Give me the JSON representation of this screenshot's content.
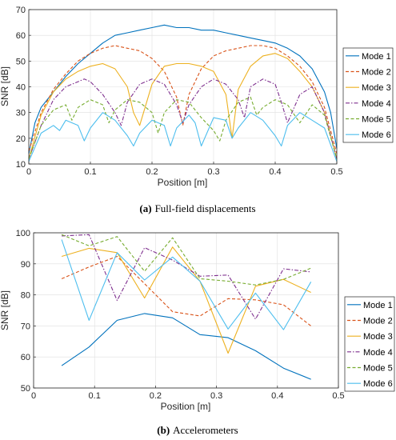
{
  "chart_data": [
    {
      "type": "line",
      "caption_label": "(a)",
      "caption_text": "Full-field displacements",
      "xlabel": "Position [m]",
      "ylabel": "SNR [dB]",
      "xlim": [
        0,
        0.5
      ],
      "ylim": [
        10,
        70
      ],
      "xticks": [
        "0",
        "0.1",
        "0.2",
        "0.3",
        "0.4",
        "0.5"
      ],
      "yticks": [
        "10",
        "20",
        "30",
        "40",
        "50",
        "60",
        "70"
      ],
      "grid": true,
      "legend_position": "right",
      "series": [
        {
          "name": "Mode 1",
          "color": "#0072BD",
          "dash": "solid",
          "x": [
            0,
            0.01,
            0.02,
            0.04,
            0.06,
            0.08,
            0.1,
            0.12,
            0.14,
            0.16,
            0.18,
            0.2,
            0.22,
            0.24,
            0.26,
            0.28,
            0.3,
            0.32,
            0.34,
            0.36,
            0.38,
            0.4,
            0.42,
            0.44,
            0.46,
            0.48,
            0.49,
            0.5
          ],
          "y": [
            14,
            26,
            32,
            38,
            44,
            49,
            53,
            57,
            60,
            61,
            62,
            63,
            64,
            63,
            63,
            62,
            62,
            61,
            60,
            59,
            58,
            57,
            55,
            52,
            47,
            38,
            30,
            16
          ]
        },
        {
          "name": "Mode 2",
          "color": "#D95319",
          "dash": "dashed",
          "x": [
            0,
            0.02,
            0.04,
            0.06,
            0.08,
            0.1,
            0.12,
            0.14,
            0.16,
            0.18,
            0.2,
            0.22,
            0.24,
            0.25,
            0.26,
            0.28,
            0.3,
            0.32,
            0.34,
            0.36,
            0.38,
            0.4,
            0.42,
            0.44,
            0.46,
            0.48,
            0.5
          ],
          "y": [
            15,
            30,
            39,
            45,
            50,
            53,
            55,
            56,
            55,
            54,
            51,
            46,
            36,
            25,
            37,
            47,
            52,
            54,
            55,
            56,
            56,
            55,
            52,
            48,
            42,
            32,
            14
          ]
        },
        {
          "name": "Mode 3",
          "color": "#EDB120",
          "dash": "solid",
          "x": [
            0,
            0.02,
            0.04,
            0.06,
            0.08,
            0.1,
            0.12,
            0.14,
            0.16,
            0.17,
            0.18,
            0.2,
            0.22,
            0.24,
            0.26,
            0.28,
            0.3,
            0.32,
            0.33,
            0.34,
            0.36,
            0.38,
            0.4,
            0.42,
            0.44,
            0.46,
            0.48,
            0.5
          ],
          "y": [
            12,
            29,
            38,
            43,
            46,
            48,
            49,
            47,
            40,
            30,
            25,
            41,
            48,
            49,
            49,
            48,
            46,
            37,
            20,
            39,
            48,
            52,
            53,
            51,
            46,
            40,
            30,
            12
          ]
        },
        {
          "name": "Mode 4",
          "color": "#7E2F8E",
          "dash": "dashdot",
          "x": [
            0,
            0.02,
            0.04,
            0.06,
            0.08,
            0.09,
            0.1,
            0.12,
            0.14,
            0.15,
            0.16,
            0.18,
            0.2,
            0.22,
            0.24,
            0.25,
            0.26,
            0.28,
            0.3,
            0.32,
            0.34,
            0.35,
            0.36,
            0.38,
            0.4,
            0.41,
            0.42,
            0.44,
            0.46,
            0.48,
            0.5
          ],
          "y": [
            12,
            25,
            35,
            40,
            42,
            43,
            42,
            37,
            30,
            25,
            34,
            41,
            43,
            41,
            33,
            26,
            33,
            40,
            43,
            41,
            35,
            28,
            40,
            43,
            41,
            34,
            26,
            37,
            40,
            30,
            12
          ]
        },
        {
          "name": "Mode 5",
          "color": "#77AC30",
          "dash": "dashed",
          "x": [
            0,
            0.02,
            0.04,
            0.06,
            0.07,
            0.08,
            0.1,
            0.12,
            0.13,
            0.14,
            0.16,
            0.18,
            0.2,
            0.21,
            0.22,
            0.24,
            0.26,
            0.28,
            0.3,
            0.31,
            0.32,
            0.34,
            0.36,
            0.37,
            0.38,
            0.4,
            0.42,
            0.44,
            0.46,
            0.48,
            0.5
          ],
          "y": [
            12,
            25,
            31,
            33,
            27,
            32,
            35,
            33,
            26,
            31,
            35,
            34,
            30,
            22,
            30,
            35,
            34,
            28,
            23,
            19,
            27,
            34,
            36,
            29,
            32,
            35,
            33,
            26,
            33,
            29,
            12
          ]
        },
        {
          "name": "Mode 6",
          "color": "#4DBEEE",
          "dash": "solid",
          "x": [
            0,
            0.02,
            0.04,
            0.05,
            0.06,
            0.08,
            0.09,
            0.1,
            0.12,
            0.14,
            0.16,
            0.17,
            0.18,
            0.2,
            0.22,
            0.23,
            0.24,
            0.26,
            0.27,
            0.28,
            0.3,
            0.32,
            0.33,
            0.34,
            0.36,
            0.38,
            0.4,
            0.41,
            0.42,
            0.44,
            0.46,
            0.48,
            0.5
          ],
          "y": [
            11,
            22,
            25,
            23,
            27,
            25,
            19,
            24,
            30,
            27,
            21,
            17,
            22,
            27,
            25,
            17,
            24,
            29,
            26,
            17,
            28,
            27,
            20,
            24,
            30,
            27,
            21,
            17,
            25,
            30,
            27,
            24,
            11
          ]
        }
      ]
    },
    {
      "type": "line",
      "caption_label": "(b)",
      "caption_text": "Accelerometers",
      "xlabel": "Position [m]",
      "ylabel": "SNR [dB]",
      "xlim": [
        0,
        0.5
      ],
      "ylim": [
        50,
        100
      ],
      "xticks": [
        "0",
        "0.1",
        "0.2",
        "0.3",
        "0.4",
        "0.5"
      ],
      "yticks": [
        "50",
        "60",
        "70",
        "80",
        "90",
        "100"
      ],
      "grid": true,
      "legend_position": "right",
      "series": [
        {
          "name": "Mode 1",
          "color": "#0072BD",
          "dash": "solid",
          "x": [
            0.046,
            0.091,
            0.137,
            0.182,
            0.228,
            0.273,
            0.319,
            0.364,
            0.41,
            0.455
          ],
          "y": [
            57.2,
            63.2,
            71.8,
            74.0,
            72.6,
            67.2,
            66.2,
            62.0,
            56.4,
            52.8
          ]
        },
        {
          "name": "Mode 2",
          "color": "#D95319",
          "dash": "dashed",
          "x": [
            0.046,
            0.091,
            0.137,
            0.182,
            0.228,
            0.273,
            0.319,
            0.364,
            0.41,
            0.455
          ],
          "y": [
            85.2,
            89.0,
            92.4,
            83.6,
            74.6,
            73.2,
            78.8,
            78.4,
            76.8,
            70.0
          ]
        },
        {
          "name": "Mode 3",
          "color": "#EDB120",
          "dash": "solid",
          "x": [
            0.046,
            0.091,
            0.137,
            0.182,
            0.228,
            0.273,
            0.319,
            0.364,
            0.41,
            0.455
          ],
          "y": [
            92.4,
            95.0,
            93.6,
            79.0,
            95.4,
            84.4,
            61.2,
            82.8,
            85.0,
            80.8
          ]
        },
        {
          "name": "Mode 4",
          "color": "#7E2F8E",
          "dash": "dashdot",
          "x": [
            0.046,
            0.091,
            0.137,
            0.182,
            0.228,
            0.273,
            0.319,
            0.364,
            0.41,
            0.455
          ],
          "y": [
            99.0,
            99.4,
            78.2,
            95.2,
            91.2,
            86.0,
            86.4,
            72.2,
            88.4,
            87.4
          ]
        },
        {
          "name": "Mode 5",
          "color": "#77AC30",
          "dash": "dashed",
          "x": [
            0.046,
            0.091,
            0.137,
            0.182,
            0.228,
            0.273,
            0.319,
            0.364,
            0.41,
            0.455
          ],
          "y": [
            99.4,
            95.8,
            98.8,
            87.6,
            98.4,
            85.2,
            84.4,
            83.2,
            85.0,
            88.6
          ]
        },
        {
          "name": "Mode 6",
          "color": "#4DBEEE",
          "dash": "solid",
          "x": [
            0.046,
            0.091,
            0.137,
            0.182,
            0.228,
            0.273,
            0.319,
            0.364,
            0.41,
            0.455
          ],
          "y": [
            97.8,
            71.8,
            93.6,
            84.8,
            92.2,
            84.4,
            69.0,
            80.6,
            68.8,
            84.2
          ]
        }
      ]
    }
  ]
}
